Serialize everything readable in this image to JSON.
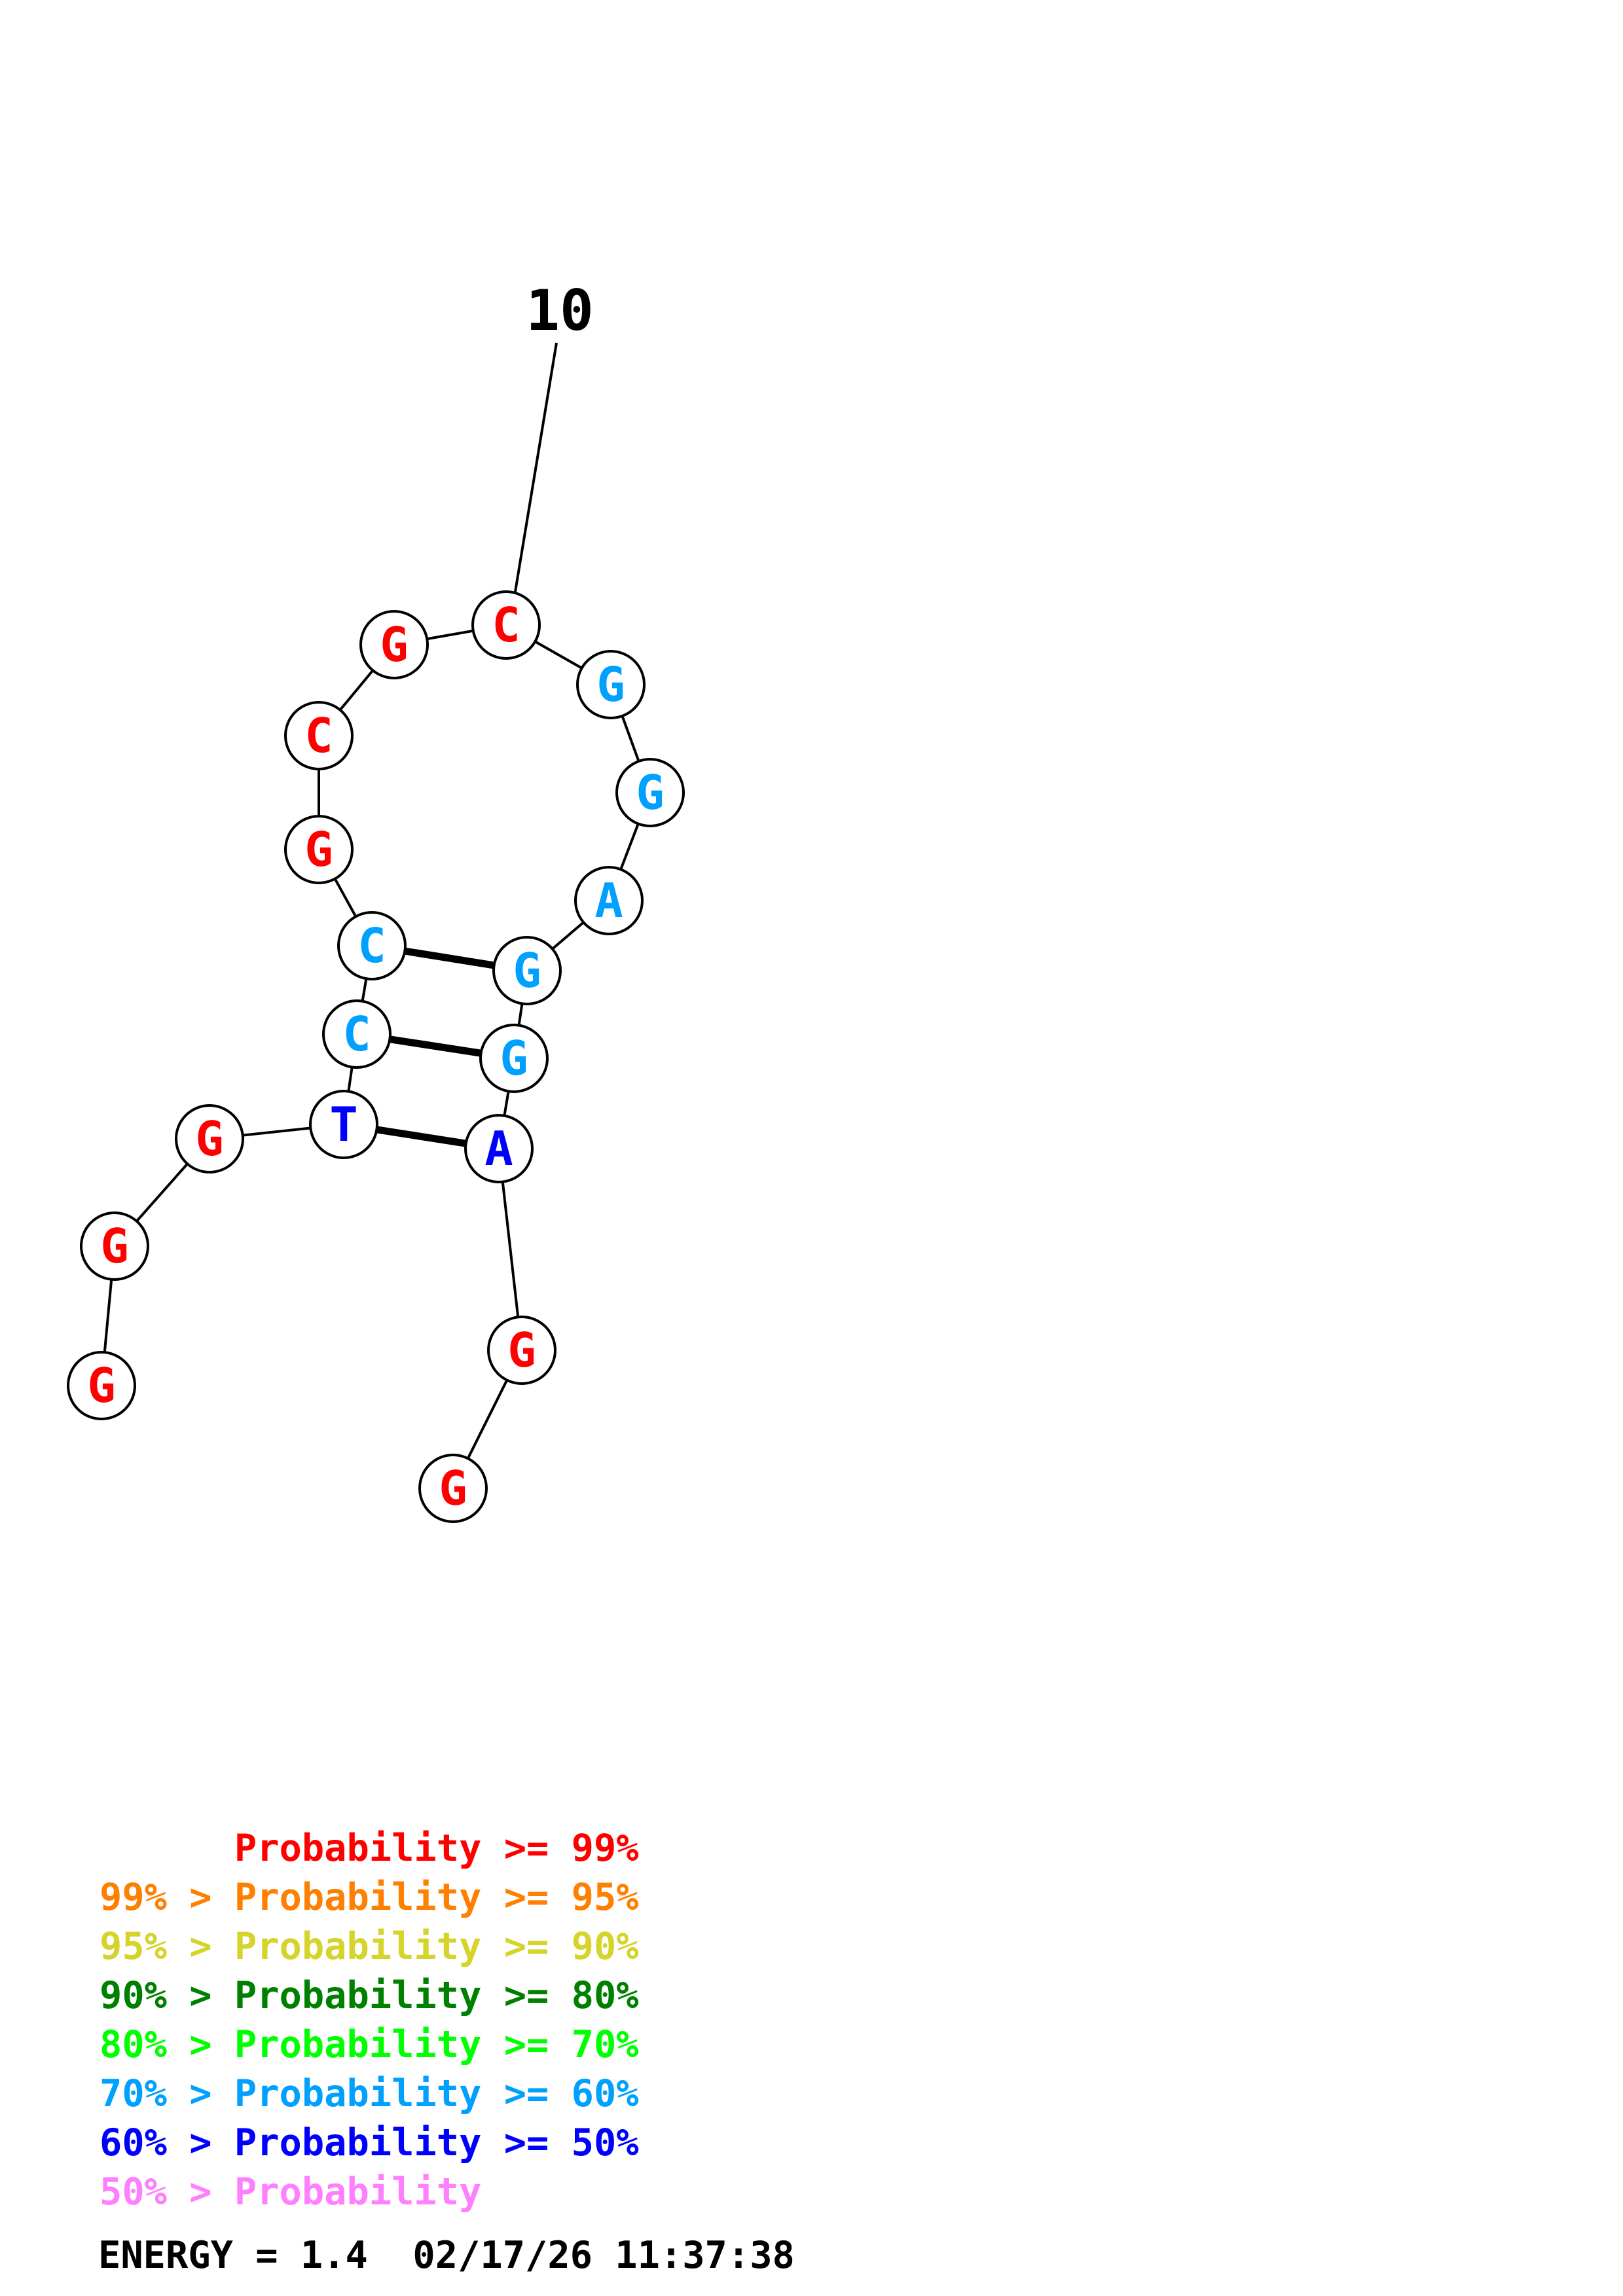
{
  "sequence": [
    {
      "base": "G",
      "color": "#ff0000"
    },
    {
      "base": "G",
      "color": "#ff0000"
    },
    {
      "base": "G",
      "color": "#ff0000"
    },
    {
      "base": "T",
      "color": "#0000ff"
    },
    {
      "base": "C",
      "color": "#00a0ff"
    },
    {
      "base": "C",
      "color": "#00a0ff"
    },
    {
      "base": "G",
      "color": "#ff0000"
    },
    {
      "base": "C",
      "color": "#ff0000"
    },
    {
      "base": "G",
      "color": "#ff0000"
    },
    {
      "base": "C",
      "color": "#ff0000"
    },
    {
      "base": "G",
      "color": "#00a0ff"
    },
    {
      "base": "G",
      "color": "#00a0ff"
    },
    {
      "base": "A",
      "color": "#00a0ff"
    },
    {
      "base": "G",
      "color": "#00a0ff"
    },
    {
      "base": "G",
      "color": "#00a0ff"
    },
    {
      "base": "A",
      "color": "#0000ff"
    },
    {
      "base": "G",
      "color": "#ff0000"
    },
    {
      "base": "G",
      "color": "#ff0000"
    }
  ],
  "base_pairs": [
    [
      4,
      16
    ],
    [
      5,
      15
    ],
    [
      6,
      14
    ]
  ],
  "index_label": {
    "position": 10,
    "text": "10"
  },
  "legend": [
    {
      "text": "      Probability >= 99%",
      "color": "#ff0000"
    },
    {
      "text": "99% > Probability >= 95%",
      "color": "#ff8000"
    },
    {
      "text": "95% > Probability >= 90%",
      "color": "#d4d42a"
    },
    {
      "text": "90% > Probability >= 80%",
      "color": "#008000"
    },
    {
      "text": "80% > Probability >= 70%",
      "color": "#00ff00"
    },
    {
      "text": "70% > Probability >= 60%",
      "color": "#00a0ff"
    },
    {
      "text": "60% > Probability >= 50%",
      "color": "#0000ff"
    },
    {
      "text": "50% > Probability",
      "color": "#ff80ff"
    }
  ],
  "energy": {
    "text": "ENERGY = 1.4  02/17/26 11:37:38"
  }
}
